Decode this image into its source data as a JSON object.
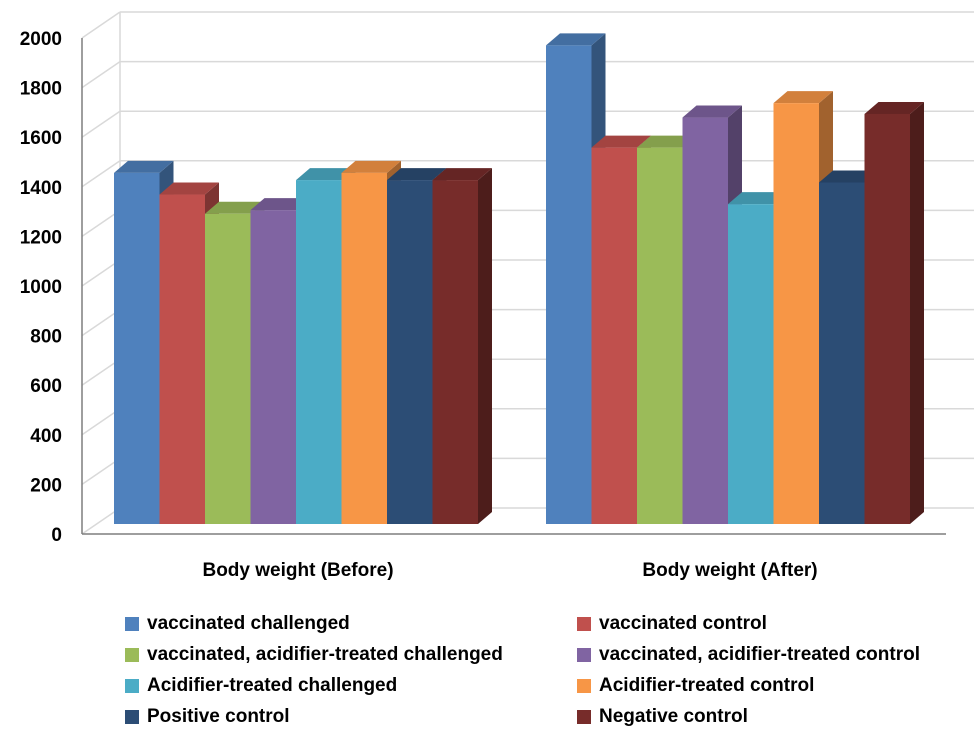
{
  "chart_data": {
    "type": "bar",
    "style": "3d-clustered-column",
    "categories": [
      "Body weight (Before)",
      "Body weight (After)"
    ],
    "y_ticks": [
      "0",
      "200",
      "400",
      "600",
      "800",
      "1000",
      "1200",
      "1400",
      "1600",
      "1800",
      "2000"
    ],
    "ylim": [
      0,
      2000
    ],
    "grid": true,
    "legend_position": "bottom",
    "series": [
      {
        "name": "vaccinated challenged",
        "color": "#4F81BD",
        "values": [
          1460,
          1990
        ]
      },
      {
        "name": "vaccinated control",
        "color": "#C0504D",
        "values": [
          1370,
          1565
        ]
      },
      {
        "name": "vaccinated, acidifier-treated challenged",
        "color": "#9BBB59",
        "values": [
          1290,
          1565
        ]
      },
      {
        "name": "vaccinated, acidifier-treated control",
        "color": "#8064A2",
        "values": [
          1305,
          1690
        ]
      },
      {
        "name": "Acidifier-treated challenged",
        "color": "#4BACC6",
        "values": [
          1430,
          1330
        ]
      },
      {
        "name": "Acidifier-treated control",
        "color": "#F79646",
        "values": [
          1460,
          1750
        ]
      },
      {
        "name": "Positive control",
        "color": "#2C4D75",
        "values": [
          1430,
          1420
        ]
      },
      {
        "name": "Negative control",
        "color": "#772C2A",
        "values": [
          1430,
          1705
        ]
      }
    ]
  }
}
